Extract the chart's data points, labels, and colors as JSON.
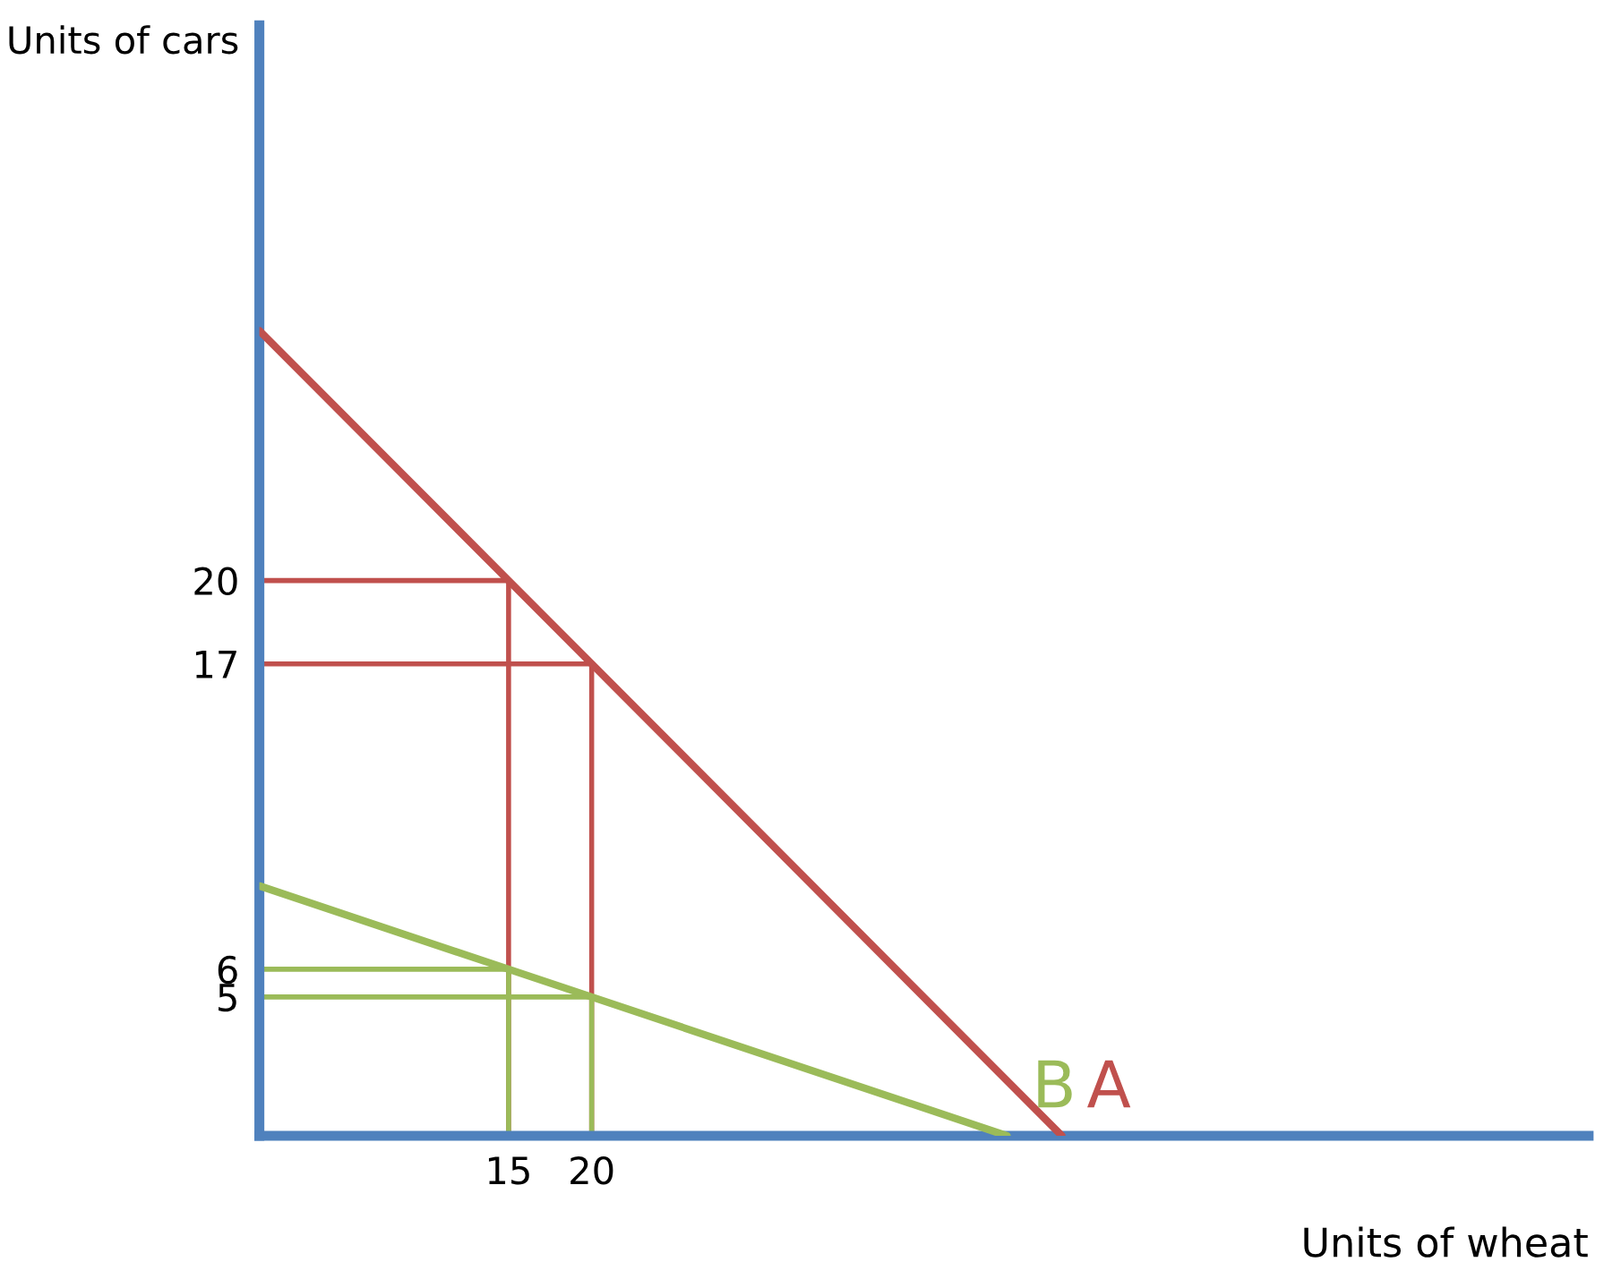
{
  "chart_data": {
    "type": "line",
    "xlabel": "Units of wheat",
    "ylabel": "Units of cars",
    "xlim": [
      0,
      80
    ],
    "ylim": [
      0,
      40
    ],
    "xticks": [
      15,
      20
    ],
    "yticks": [
      5,
      6,
      17,
      20
    ],
    "grid": false,
    "legend": false,
    "marker": "none",
    "line_style": "solid",
    "series": [
      {
        "name": "A",
        "color": "#c0504d",
        "x": [
          0,
          15,
          20,
          48.3
        ],
        "values": [
          29,
          20,
          17,
          0
        ]
      },
      {
        "name": "B",
        "color": "#9bbb59",
        "x": [
          0,
          15,
          20,
          45
        ],
        "values": [
          9,
          6,
          5,
          0
        ]
      },
      {
        "color": "#c0504d",
        "x": [
          0,
          15,
          15
        ],
        "values": [
          20,
          20,
          0
        ]
      },
      {
        "color": "#c0504d",
        "x": [
          0,
          20,
          20
        ],
        "values": [
          17,
          17,
          0
        ]
      },
      {
        "color": "#9bbb59",
        "x": [
          0,
          15,
          15
        ],
        "values": [
          6,
          6,
          0
        ]
      },
      {
        "color": "#9bbb59",
        "x": [
          0,
          20,
          20
        ],
        "values": [
          5,
          5,
          0
        ]
      }
    ]
  }
}
